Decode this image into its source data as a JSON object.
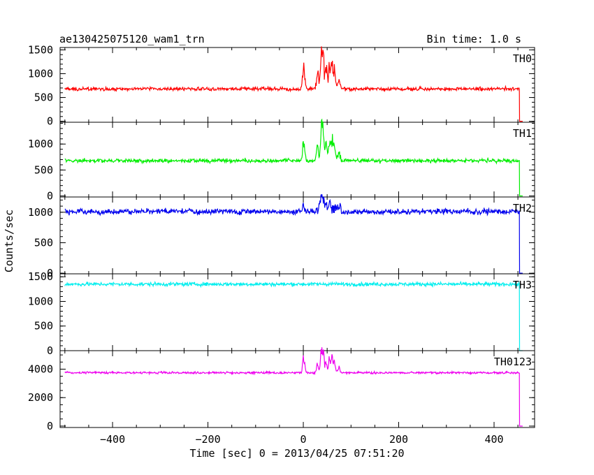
{
  "chart_data": {
    "type": "line",
    "title": "ae130425075120_wam1_trn",
    "subtitle": "Bin time: 1.0 s",
    "xlabel": "Time [sec] 0 = 2013/04/25 07:51:20",
    "ylabel": "Counts/sec",
    "xlim": [
      -510,
      485
    ],
    "x_ticks": [
      -400,
      -200,
      0,
      200,
      400
    ],
    "x_tick_labels": [
      "−400",
      "−200",
      "0",
      "200",
      "400"
    ],
    "series": [
      {
        "name": "TH0",
        "color": "#ff0000",
        "ylim": [
          -20,
          1550
        ],
        "y_ticks": [
          0,
          500,
          1000,
          1500
        ],
        "y_tick_labels": [
          "0",
          "500",
          "1000",
          "1500"
        ],
        "baseline": 680,
        "noise": 45,
        "features": [
          [
            0,
            430
          ],
          [
            3,
            200
          ],
          [
            30,
            250
          ],
          [
            38,
            820
          ],
          [
            42,
            600
          ],
          [
            48,
            450
          ],
          [
            55,
            500
          ],
          [
            60,
            520
          ],
          [
            65,
            380
          ],
          [
            75,
            150
          ]
        ],
        "x": [
          -500,
          -400,
          -300,
          -200,
          -100,
          -10,
          0,
          10,
          30,
          38,
          45,
          55,
          60,
          70,
          100,
          200,
          300,
          400,
          453,
          454,
          460
        ],
        "y": [
          680,
          680,
          680,
          680,
          680,
          690,
          1100,
          740,
          950,
          1500,
          1130,
          1180,
          1200,
          850,
          690,
          680,
          680,
          670,
          670,
          0,
          0
        ]
      },
      {
        "name": "TH1",
        "color": "#00ee00",
        "ylim": [
          -20,
          1420
        ],
        "y_ticks": [
          0,
          500,
          1000
        ],
        "y_tick_labels": [
          "0",
          "500",
          "1000"
        ],
        "baseline": 680,
        "noise": 45,
        "features": [
          [
            0,
            350
          ],
          [
            3,
            150
          ],
          [
            30,
            250
          ],
          [
            38,
            700
          ],
          [
            42,
            500
          ],
          [
            48,
            350
          ],
          [
            55,
            420
          ],
          [
            60,
            400
          ],
          [
            65,
            300
          ],
          [
            75,
            120
          ]
        ],
        "x": [
          -500,
          -400,
          -300,
          -200,
          -100,
          -10,
          0,
          10,
          30,
          38,
          45,
          55,
          60,
          70,
          100,
          200,
          300,
          400,
          453,
          454,
          460
        ],
        "y": [
          680,
          680,
          680,
          680,
          680,
          690,
          1030,
          740,
          930,
          1380,
          1100,
          1110,
          1080,
          830,
          690,
          680,
          680,
          670,
          670,
          0,
          0
        ]
      },
      {
        "name": "TH2",
        "color": "#0000ee",
        "ylim": [
          -10,
          1250
        ],
        "y_ticks": [
          0,
          500,
          1000
        ],
        "y_tick_labels": [
          "0",
          "500",
          "1000"
        ],
        "baseline": 1010,
        "noise": 55,
        "features": [
          [
            0,
            100
          ],
          [
            38,
            200
          ],
          [
            42,
            150
          ],
          [
            48,
            80
          ],
          [
            55,
            80
          ]
        ],
        "x": [
          -500,
          -400,
          -300,
          -200,
          -100,
          0,
          38,
          45,
          55,
          100,
          200,
          300,
          400,
          453,
          454,
          460
        ],
        "y": [
          1010,
          1010,
          1005,
          1010,
          1005,
          1100,
          1210,
          1150,
          1100,
          1000,
          990,
          970,
          970,
          960,
          0,
          0
        ]
      },
      {
        "name": "TH3",
        "color": "#00eeee",
        "ylim": [
          0,
          1560
        ],
        "y_ticks": [
          0,
          500,
          1000,
          1500
        ],
        "y_tick_labels": [
          "0",
          "500",
          "1000",
          "1500"
        ],
        "baseline": 1350,
        "noise": 45,
        "features": [],
        "x": [
          -500,
          -400,
          -300,
          -200,
          -100,
          0,
          100,
          200,
          300,
          400,
          453,
          454,
          460
        ],
        "y": [
          1350,
          1355,
          1350,
          1350,
          1350,
          1355,
          1350,
          1350,
          1350,
          1345,
          1340,
          0,
          0
        ]
      },
      {
        "name": "TH0123",
        "color": "#ee00ee",
        "ylim": [
          -100,
          5300
        ],
        "y_ticks": [
          0,
          2000,
          4000
        ],
        "y_tick_labels": [
          "0",
          "2000",
          "4000"
        ],
        "baseline": 3750,
        "noise": 90,
        "features": [
          [
            0,
            900
          ],
          [
            3,
            400
          ],
          [
            30,
            500
          ],
          [
            38,
            1500
          ],
          [
            42,
            1100
          ],
          [
            48,
            800
          ],
          [
            55,
            900
          ],
          [
            60,
            900
          ],
          [
            65,
            600
          ],
          [
            75,
            250
          ]
        ],
        "x": [
          -500,
          -400,
          -300,
          -200,
          -100,
          -10,
          0,
          10,
          30,
          38,
          45,
          55,
          60,
          70,
          100,
          200,
          300,
          400,
          453,
          454,
          460
        ],
        "y": [
          3750,
          3750,
          3750,
          3750,
          3750,
          3780,
          4650,
          3900,
          4300,
          5250,
          4600,
          4700,
          4650,
          4100,
          3780,
          3750,
          3730,
          3700,
          3700,
          0,
          0
        ]
      }
    ],
    "grid": false,
    "legend": "panel label at top-right of each panel"
  }
}
